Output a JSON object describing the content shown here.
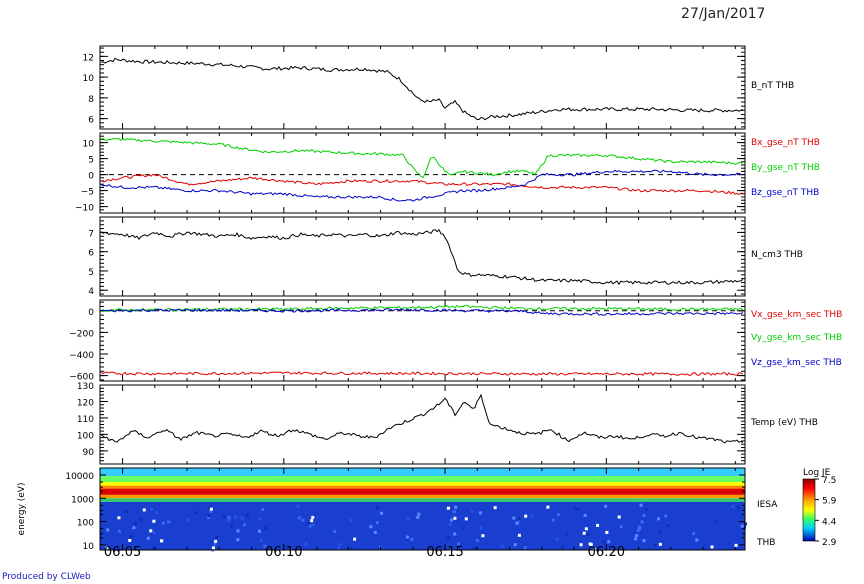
{
  "header": {
    "date": "27/Jan/2017"
  },
  "footer": {
    "credit": "Produced by CLWeb"
  },
  "colors": {
    "black": "#000000",
    "red": "#e00000",
    "green": "#00d000",
    "blue": "#0000c8"
  },
  "time_axis": {
    "ticks": [
      "06:05",
      "06:10",
      "06:15",
      "06:20"
    ],
    "range_min": [
      4.3,
      24.3
    ]
  },
  "chart_data": [
    {
      "type": "line",
      "ylim": [
        5,
        13
      ],
      "yticks": [
        6,
        8,
        10,
        12
      ],
      "series": [
        {
          "name": "B_nT THB",
          "color": "black",
          "x": [
            4.3,
            4.8,
            5.5,
            6.5,
            7.5,
            8.5,
            9.5,
            10.5,
            11.5,
            12.5,
            13.2,
            13.6,
            13.9,
            14.2,
            14.5,
            14.8,
            15.0,
            15.3,
            15.6,
            16.0,
            16.5,
            17.0,
            17.8,
            18.5,
            19.5,
            20.5,
            21.5,
            22.5,
            23.5,
            24.3
          ],
          "y": [
            11.4,
            11.7,
            11.5,
            11.4,
            11.3,
            11.1,
            10.8,
            10.9,
            10.7,
            10.8,
            10.5,
            9.8,
            8.8,
            7.8,
            7.6,
            7.8,
            7.0,
            7.6,
            6.6,
            5.9,
            6.2,
            6.3,
            6.6,
            6.9,
            6.9,
            6.9,
            6.9,
            6.8,
            6.8,
            6.8
          ]
        }
      ]
    },
    {
      "type": "line",
      "ylim": [
        -12,
        13
      ],
      "yticks": [
        -10,
        -5,
        0,
        5,
        10
      ],
      "zero_line": true,
      "series": [
        {
          "name": "Bx_gse_nT THB",
          "color": "red",
          "x": [
            4.3,
            5.0,
            6.0,
            7.0,
            8.0,
            9.0,
            10.0,
            11.0,
            12.0,
            13.0,
            14.0,
            15.0,
            16.0,
            17.0,
            18.0,
            19.0,
            20.0,
            21.0,
            22.0,
            23.0,
            24.3
          ],
          "y": [
            -2,
            -1,
            0,
            -3,
            -2,
            -1,
            -2,
            -3,
            -2,
            -2,
            -2,
            -3,
            -3,
            -3,
            -4,
            -4,
            -4,
            -5,
            -5,
            -5,
            -6
          ]
        },
        {
          "name": "By_gse_nT THB",
          "color": "green",
          "x": [
            4.3,
            5.0,
            6.0,
            7.0,
            8.0,
            8.8,
            9.5,
            10.5,
            11.5,
            12.5,
            13.0,
            13.7,
            14.0,
            14.3,
            14.4,
            14.6,
            15.0,
            15.2,
            15.5,
            16.5,
            17.0,
            17.5,
            17.8,
            18.2,
            19.0,
            20.0,
            21.0,
            22.0,
            23.0,
            24.3
          ],
          "y": [
            11,
            11,
            10.5,
            10,
            9.5,
            8,
            7,
            7.5,
            7,
            6.5,
            6.5,
            6,
            2,
            -1,
            1,
            6,
            1,
            -0.5,
            1,
            0,
            1,
            1,
            0,
            6,
            6,
            6,
            5,
            4,
            4,
            3.5
          ]
        },
        {
          "name": "Bz_gse_nT THB",
          "color": "blue",
          "x": [
            4.3,
            5.0,
            6.0,
            7.0,
            8.0,
            9.0,
            10.0,
            11.0,
            12.0,
            13.0,
            13.5,
            14.0,
            14.5,
            15.0,
            15.5,
            16.0,
            17.0,
            17.5,
            18.0,
            19.0,
            20.0,
            21.0,
            22.0,
            23.0,
            24.3
          ],
          "y": [
            -3,
            -4,
            -4,
            -5,
            -5,
            -6,
            -6,
            -7,
            -7,
            -7,
            -8,
            -8,
            -7,
            -6,
            -5,
            -5,
            -4,
            -3,
            0,
            0,
            1,
            1,
            1,
            0,
            0
          ]
        }
      ],
      "legend": [
        "Bx_gse_nT THB",
        "By_gse_nT THB",
        "Bz_gse_nT THB"
      ]
    },
    {
      "type": "line",
      "ylim": [
        3.7,
        7.8
      ],
      "yticks": [
        4,
        5,
        6,
        7
      ],
      "series": [
        {
          "name": "N_cm3 THB",
          "color": "black",
          "x": [
            4.3,
            5.0,
            5.5,
            6.0,
            6.5,
            7.0,
            7.5,
            8.0,
            8.5,
            9.0,
            9.5,
            10.0,
            10.5,
            11.0,
            11.5,
            12.0,
            12.5,
            13.0,
            13.5,
            14.0,
            14.5,
            14.8,
            15.0,
            15.2,
            15.4,
            15.7,
            16.0,
            17.0,
            18.0,
            19.0,
            20.0,
            21.0,
            22.0,
            23.0,
            24.3
          ],
          "y": [
            7.0,
            6.9,
            6.7,
            7.0,
            6.8,
            7.0,
            6.9,
            6.8,
            6.9,
            6.7,
            6.8,
            6.7,
            6.9,
            6.8,
            6.9,
            6.8,
            6.9,
            6.8,
            7.0,
            6.9,
            7.0,
            7.1,
            6.8,
            6.0,
            5.0,
            4.8,
            4.8,
            4.7,
            4.5,
            4.5,
            4.4,
            4.4,
            4.4,
            4.4,
            4.5
          ]
        }
      ]
    },
    {
      "type": "line",
      "ylim": [
        -650,
        100
      ],
      "yticks": [
        -600,
        -400,
        -200,
        0
      ],
      "zero_line": true,
      "series": [
        {
          "name": "Vx_gse_km_sec THB",
          "color": "red",
          "x": [
            4.3,
            6.0,
            8.0,
            10.0,
            12.0,
            14.0,
            16.0,
            18.0,
            20.0,
            22.0,
            24.3
          ],
          "y": [
            -578,
            -582,
            -580,
            -575,
            -578,
            -580,
            -582,
            -585,
            -585,
            -585,
            -585
          ]
        },
        {
          "name": "Vy_gse_km_sec THB",
          "color": "green",
          "x": [
            4.3,
            6.0,
            8.0,
            10.0,
            12.0,
            14.0,
            15.5,
            17.0,
            18.0,
            20.0,
            22.0,
            24.3
          ],
          "y": [
            5,
            10,
            15,
            15,
            25,
            30,
            40,
            25,
            20,
            20,
            15,
            15
          ]
        },
        {
          "name": "Vz_gse_km_sec THB",
          "color": "blue",
          "x": [
            4.3,
            6.0,
            8.0,
            10.0,
            12.0,
            14.0,
            16.0,
            17.5,
            18.0,
            20.0,
            22.0,
            24.3
          ],
          "y": [
            0,
            5,
            5,
            0,
            5,
            10,
            0,
            -5,
            -25,
            -30,
            -25,
            -25
          ]
        }
      ],
      "legend": [
        "Vx_gse_km_sec THB",
        "Vy_gse_km_sec THB",
        "Vz_gse_km_sec THB"
      ]
    },
    {
      "type": "line",
      "ylim": [
        82,
        130
      ],
      "yticks": [
        90,
        100,
        110,
        120,
        130
      ],
      "series": [
        {
          "name": "Temp (eV) THB",
          "color": "black",
          "x": [
            4.3,
            4.8,
            5.3,
            5.8,
            6.3,
            6.8,
            7.3,
            7.8,
            8.3,
            8.8,
            9.3,
            9.8,
            10.3,
            10.8,
            11.3,
            11.8,
            12.3,
            12.8,
            13.3,
            13.8,
            14.3,
            14.8,
            15.0,
            15.3,
            15.6,
            15.9,
            16.1,
            16.4,
            16.8,
            17.3,
            17.8,
            18.3,
            18.8,
            19.3,
            19.8,
            20.3,
            20.8,
            21.3,
            21.8,
            22.3,
            22.8,
            23.3,
            23.8,
            24.3
          ],
          "y": [
            100,
            95,
            102,
            98,
            103,
            97,
            101,
            99,
            100,
            98,
            102,
            99,
            103,
            100,
            97,
            101,
            99,
            98,
            104,
            108,
            112,
            118,
            122,
            112,
            120,
            115,
            124,
            106,
            104,
            101,
            100,
            103,
            96,
            101,
            98,
            99,
            97,
            100,
            99,
            101,
            98,
            97,
            95,
            96
          ]
        }
      ]
    },
    {
      "type": "heatmap",
      "ylabel": "energy (eV)",
      "ylim": [
        6,
        20000
      ],
      "yticks": [
        10,
        100,
        1000,
        10000
      ],
      "label": "IESA",
      "footer_label": "THB",
      "colorbar": {
        "title": "Log JE",
        "ticks": [
          7.5,
          5.9,
          4.4,
          2.9
        ]
      }
    }
  ]
}
